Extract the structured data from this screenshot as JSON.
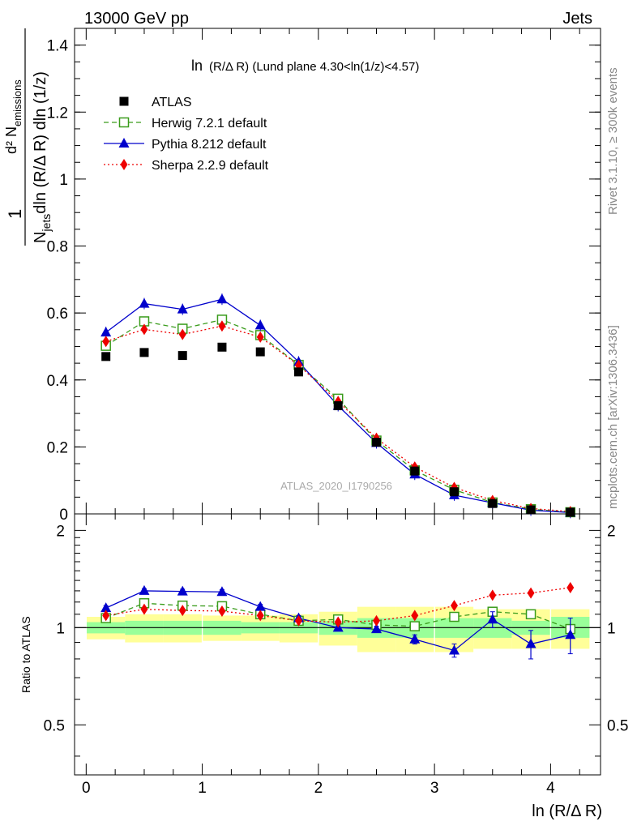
{
  "header": {
    "energy": "13000 GeV pp",
    "process": "Jets"
  },
  "side_labels": {
    "rivet": "Rivet 3.1.10, ≥ 300k events",
    "source": "mcplots.cern.ch [arXiv:1306.3436]"
  },
  "watermark": "ATLAS_2020_I1790256",
  "colors": {
    "atlas": "#000000",
    "herwig": "#3a9c1c",
    "pythia": "#0000cc",
    "sherpa": "#ee0000",
    "band_inner": "#99ff99",
    "band_outer": "#ffff99"
  },
  "chart_data": [
    {
      "type": "scatter",
      "title_prefix": "ln",
      "title_main": "(R/Δ R) (Lund plane 4.30<ln(1/z)<4.57)",
      "ylabel_num": "1",
      "ylabel_den_pre": "N",
      "ylabel_den_sub": "jets",
      "ylabel_den_rest": "dln (R/Δ R) dln (1/z)",
      "ylabel_d2": "d² N",
      "ylabel_d2_sub": "emissions",
      "xlim": [
        -0.1,
        4.43
      ],
      "ylim": [
        0,
        1.45
      ],
      "yticks": [
        "0",
        "0.2",
        "0.4",
        "0.6",
        "0.8",
        "1",
        "1.2",
        "1.4"
      ],
      "x": [
        0.17,
        0.5,
        0.83,
        1.17,
        1.5,
        1.83,
        2.17,
        2.5,
        2.83,
        3.17,
        3.5,
        3.83,
        4.17
      ],
      "series": [
        {
          "name": "ATLAS",
          "values": [
            0.47,
            0.482,
            0.473,
            0.498,
            0.484,
            0.424,
            0.323,
            0.214,
            0.128,
            0.066,
            0.031,
            0.012,
            0.005
          ]
        },
        {
          "name": "Herwig 7.2.1 default",
          "values": [
            0.502,
            0.575,
            0.553,
            0.58,
            0.534,
            0.445,
            0.344,
            0.219,
            0.13,
            0.072,
            0.034,
            0.014,
            0.005
          ]
        },
        {
          "name": "Pythia 8.212 default",
          "values": [
            0.542,
            0.628,
            0.611,
            0.641,
            0.563,
            0.454,
            0.323,
            0.212,
            0.118,
            0.056,
            0.033,
            0.011,
            0.004
          ]
        },
        {
          "name": "Sherpa 2.2.9 default",
          "values": [
            0.515,
            0.551,
            0.536,
            0.561,
            0.528,
            0.444,
            0.336,
            0.226,
            0.14,
            0.079,
            0.04,
            0.016,
            0.007
          ]
        }
      ]
    },
    {
      "type": "line",
      "ylabel": "Ratio to ATLAS",
      "xlabel": "ln (R/Δ R)",
      "xlim": [
        -0.1,
        4.43
      ],
      "ylim": [
        0.35,
        2.25
      ],
      "yticks": [
        "0.5",
        "1",
        "2"
      ],
      "xticks": [
        "0",
        "1",
        "2",
        "3",
        "4"
      ],
      "x": [
        0.17,
        0.5,
        0.83,
        1.17,
        1.5,
        1.83,
        2.17,
        2.5,
        2.83,
        3.17,
        3.5,
        3.83,
        4.17
      ],
      "band_inner": [
        [
          0.96,
          1.04
        ],
        [
          0.95,
          1.05
        ],
        [
          0.95,
          1.05
        ],
        [
          0.95,
          1.05
        ],
        [
          0.96,
          1.04
        ],
        [
          0.96,
          1.04
        ],
        [
          0.95,
          1.05
        ],
        [
          0.93,
          1.07
        ],
        [
          0.93,
          1.07
        ],
        [
          0.93,
          1.07
        ],
        [
          0.93,
          1.07
        ],
        [
          0.95,
          1.05
        ],
        [
          0.93,
          1.08
        ]
      ],
      "band_outer": [
        [
          0.92,
          1.08
        ],
        [
          0.9,
          1.1
        ],
        [
          0.9,
          1.1
        ],
        [
          0.91,
          1.09
        ],
        [
          0.91,
          1.09
        ],
        [
          0.9,
          1.1
        ],
        [
          0.88,
          1.12
        ],
        [
          0.84,
          1.16
        ],
        [
          0.84,
          1.16
        ],
        [
          0.84,
          1.16
        ],
        [
          0.86,
          1.14
        ],
        [
          0.86,
          1.14
        ],
        [
          0.86,
          1.14
        ]
      ],
      "series": [
        {
          "name": "Herwig 7.2.1 default",
          "values": [
            1.07,
            1.19,
            1.17,
            1.165,
            1.1,
            1.05,
            1.06,
            1.02,
            1.01,
            1.08,
            1.12,
            1.1,
            0.99
          ]
        },
        {
          "name": "Pythia 8.212 default",
          "values": [
            1.15,
            1.3,
            1.295,
            1.29,
            1.16,
            1.07,
            1.0,
            0.99,
            0.92,
            0.85,
            1.06,
            0.89,
            0.95
          ]
        },
        {
          "name": "Sherpa 2.2.9 default",
          "values": [
            1.09,
            1.14,
            1.13,
            1.125,
            1.09,
            1.05,
            1.04,
            1.05,
            1.09,
            1.17,
            1.26,
            1.28,
            1.33
          ]
        }
      ],
      "error_bars": {
        "pythia_ratio": [
          0.02,
          0.02,
          0.02,
          0.02,
          0.02,
          0.02,
          0.02,
          0.02,
          0.03,
          0.04,
          0.06,
          0.09,
          0.12
        ]
      }
    }
  ]
}
